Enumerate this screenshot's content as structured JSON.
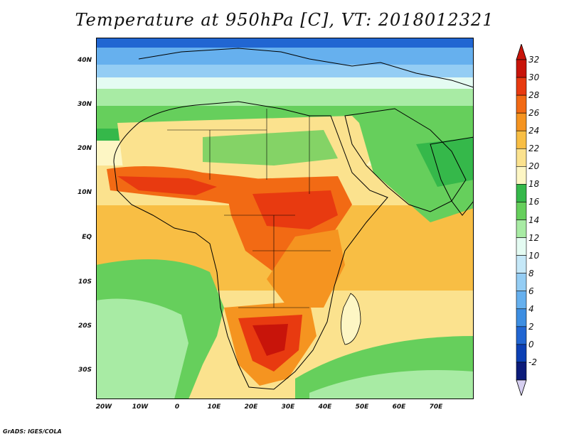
{
  "title": "Temperature at 950hPa [C], VT: 2018012321",
  "credit": "GrADS: IGES/COLA",
  "lat_labels": [
    "40N",
    "30N",
    "20N",
    "10N",
    "EQ",
    "10S",
    "20S",
    "30S"
  ],
  "lon_labels": [
    "20W",
    "10W",
    "0",
    "10E",
    "20E",
    "30E",
    "40E",
    "50E",
    "60E",
    "70E"
  ],
  "legend": {
    "labels": [
      "32",
      "30",
      "28",
      "26",
      "24",
      "22",
      "20",
      "18",
      "16",
      "14",
      "12",
      "10",
      "8",
      "6",
      "4",
      "2",
      "0",
      "-2"
    ],
    "colors": [
      "#c8140a",
      "#e83a10",
      "#f26a14",
      "#f59420",
      "#f8be44",
      "#fbe28e",
      "#fdf6c4",
      "#35b84a",
      "#66cf5c",
      "#a8eba4",
      "#e4fbf2",
      "#c5e8f8",
      "#94cdf4",
      "#66b0ee",
      "#3d8ee2",
      "#2166d2",
      "#0c40b4",
      "#0c1c7a"
    ],
    "top_arrow_color": "#c8140a",
    "bottom_arrow_color": "#d6cff0"
  },
  "colors": {
    "ocean_warm": "#fbe28e",
    "ocean_mid": "#f8be44",
    "cool_green": "#66cf5c",
    "north_blue": "#66b0ee",
    "hot": "#e83a10",
    "very_hot": "#c8140a",
    "south_cool": "#a8eba4"
  }
}
